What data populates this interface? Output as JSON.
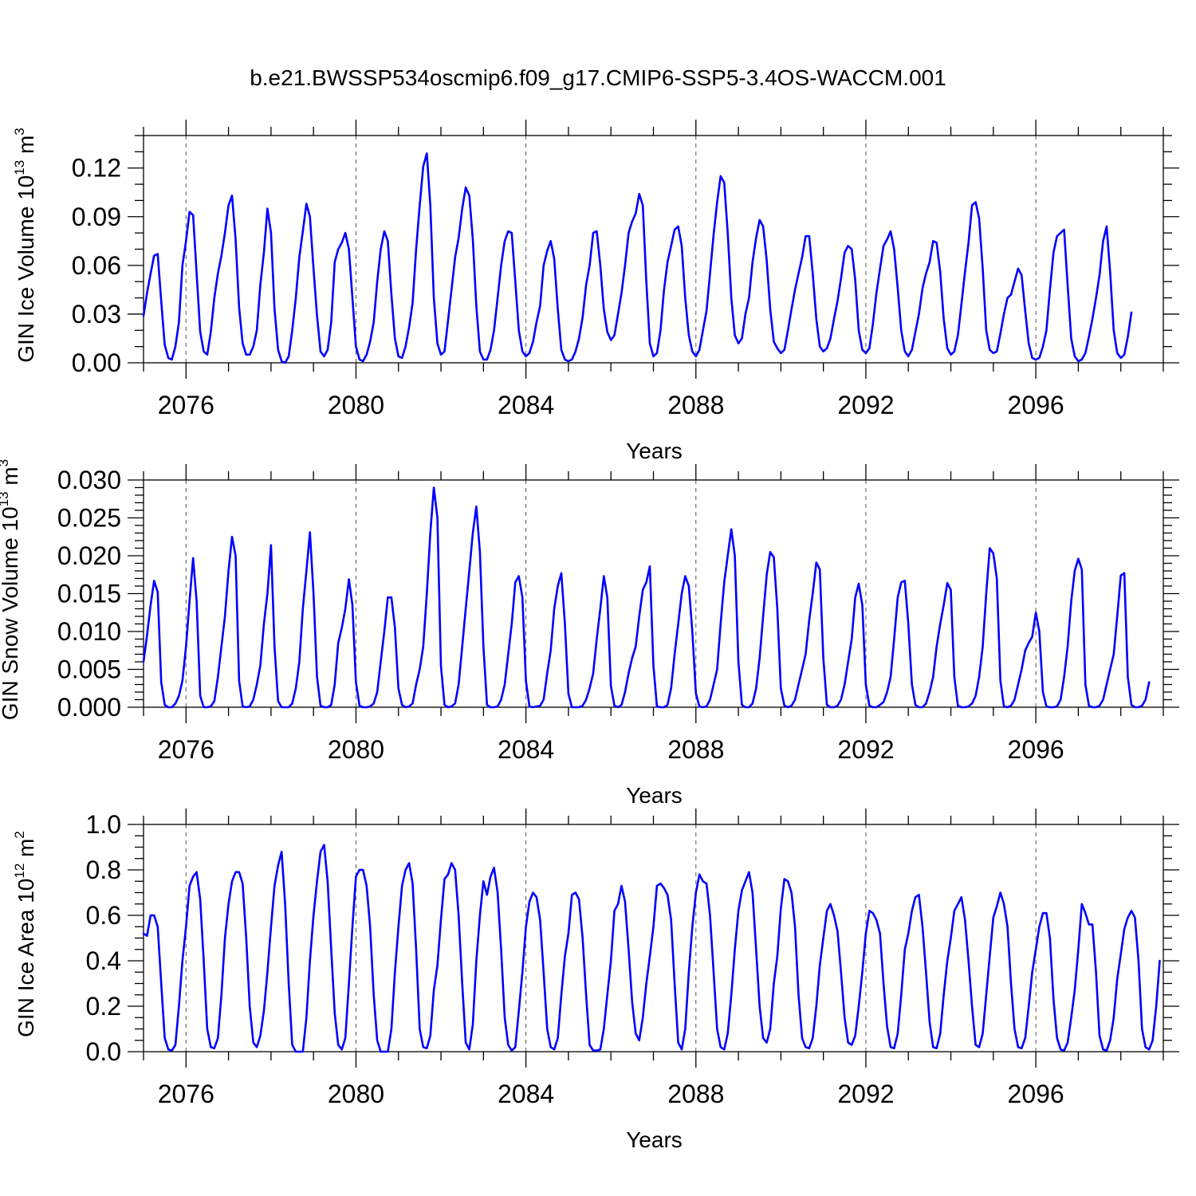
{
  "figure": {
    "title": "b.e21.BWSSP534oscmip6.f09_g17.CMIP6-SSP5-3.4OS-WACCM.001"
  },
  "chart_data": [
    {
      "type": "line",
      "ylabel": "GIN Ice Volume 10",
      "ylabel_exponent": "13",
      "ylabel_unit": " m",
      "ylabel_unit_exponent": "3",
      "xlabel": "Years",
      "xlim": [
        2075,
        2099
      ],
      "ylim": [
        0,
        0.14
      ],
      "yticks": [
        0,
        0.03,
        0.06,
        0.09,
        0.12
      ],
      "ytick_labels": [
        "0.00",
        "0.03",
        "0.06",
        "0.09",
        "0.12"
      ],
      "yminor_step": 0.01,
      "xticks": [
        2076,
        2080,
        2084,
        2088,
        2092,
        2096
      ],
      "xtick_labels": [
        "2076",
        "2080",
        "2084",
        "2088",
        "2092",
        "2096"
      ],
      "xminor_step": 1,
      "grid_x": [
        2076,
        2080,
        2084,
        2088,
        2092,
        2096
      ],
      "grid_style": "dashed vertical",
      "color": "#0000ff",
      "x_start": 2075.0,
      "x_step": 0.08333,
      "values": [
        0.029,
        0.043,
        0.055,
        0.066,
        0.067,
        0.038,
        0.011,
        0.003,
        0.002,
        0.01,
        0.025,
        0.06,
        0.075,
        0.093,
        0.091,
        0.055,
        0.019,
        0.007,
        0.005,
        0.019,
        0.04,
        0.055,
        0.066,
        0.08,
        0.097,
        0.103,
        0.076,
        0.034,
        0.012,
        0.005,
        0.005,
        0.01,
        0.02,
        0.048,
        0.068,
        0.095,
        0.08,
        0.033,
        0.008,
        0.001,
        0.0,
        0.004,
        0.02,
        0.04,
        0.065,
        0.081,
        0.098,
        0.09,
        0.058,
        0.029,
        0.007,
        0.004,
        0.008,
        0.025,
        0.062,
        0.07,
        0.074,
        0.08,
        0.07,
        0.04,
        0.01,
        0.002,
        0.001,
        0.005,
        0.013,
        0.025,
        0.05,
        0.07,
        0.081,
        0.075,
        0.042,
        0.015,
        0.004,
        0.003,
        0.01,
        0.022,
        0.037,
        0.07,
        0.097,
        0.121,
        0.129,
        0.097,
        0.04,
        0.012,
        0.005,
        0.007,
        0.026,
        0.045,
        0.065,
        0.077,
        0.095,
        0.108,
        0.103,
        0.076,
        0.035,
        0.007,
        0.002,
        0.002,
        0.008,
        0.02,
        0.04,
        0.06,
        0.075,
        0.081,
        0.08,
        0.05,
        0.02,
        0.007,
        0.004,
        0.006,
        0.013,
        0.025,
        0.035,
        0.06,
        0.069,
        0.075,
        0.064,
        0.033,
        0.008,
        0.002,
        0.001,
        0.002,
        0.007,
        0.015,
        0.028,
        0.048,
        0.06,
        0.08,
        0.081,
        0.06,
        0.033,
        0.019,
        0.014,
        0.017,
        0.03,
        0.043,
        0.06,
        0.08,
        0.087,
        0.092,
        0.104,
        0.097,
        0.05,
        0.012,
        0.004,
        0.006,
        0.02,
        0.045,
        0.062,
        0.072,
        0.082,
        0.084,
        0.072,
        0.04,
        0.017,
        0.007,
        0.004,
        0.008,
        0.02,
        0.032,
        0.055,
        0.079,
        0.099,
        0.115,
        0.111,
        0.08,
        0.04,
        0.017,
        0.012,
        0.015,
        0.03,
        0.04,
        0.062,
        0.077,
        0.088,
        0.084,
        0.063,
        0.033,
        0.013,
        0.009,
        0.006,
        0.008,
        0.02,
        0.033,
        0.045,
        0.055,
        0.065,
        0.078,
        0.078,
        0.055,
        0.027,
        0.01,
        0.007,
        0.009,
        0.015,
        0.027,
        0.038,
        0.052,
        0.068,
        0.072,
        0.07,
        0.051,
        0.02,
        0.008,
        0.006,
        0.009,
        0.024,
        0.043,
        0.058,
        0.072,
        0.076,
        0.081,
        0.07,
        0.046,
        0.02,
        0.007,
        0.004,
        0.008,
        0.019,
        0.03,
        0.046,
        0.055,
        0.062,
        0.075,
        0.074,
        0.056,
        0.027,
        0.009,
        0.005,
        0.007,
        0.017,
        0.036,
        0.056,
        0.074,
        0.097,
        0.099,
        0.089,
        0.058,
        0.02,
        0.008,
        0.006,
        0.007,
        0.018,
        0.03,
        0.04,
        0.042,
        0.05,
        0.058,
        0.054,
        0.032,
        0.012,
        0.003,
        0.002,
        0.003,
        0.01,
        0.02,
        0.045,
        0.068,
        0.078,
        0.08,
        0.082,
        0.048,
        0.015,
        0.004,
        0.001,
        0.002,
        0.006,
        0.016,
        0.027,
        0.04,
        0.054,
        0.075,
        0.084,
        0.056,
        0.02,
        0.006,
        0.003,
        0.005,
        0.016,
        0.031
      ]
    },
    {
      "type": "line",
      "ylabel": "GIN Snow Volume 10",
      "ylabel_exponent": "13",
      "ylabel_unit": " m",
      "ylabel_unit_exponent": "3",
      "xlabel": "Years",
      "xlim": [
        2075,
        2099
      ],
      "ylim": [
        0,
        0.03
      ],
      "yticks": [
        0,
        0.005,
        0.01,
        0.015,
        0.02,
        0.025,
        0.03
      ],
      "ytick_labels": [
        "0.000",
        "0.005",
        "0.010",
        "0.015",
        "0.020",
        "0.025",
        "0.030"
      ],
      "yminor_step": 0.001,
      "xticks": [
        2076,
        2080,
        2084,
        2088,
        2092,
        2096
      ],
      "xtick_labels": [
        "2076",
        "2080",
        "2084",
        "2088",
        "2092",
        "2096"
      ],
      "xminor_step": 1,
      "grid_x": [
        2076,
        2080,
        2084,
        2088,
        2092,
        2096
      ],
      "grid_style": "dashed vertical",
      "color": "#0000ff",
      "x_start": 2075.0,
      "x_step": 0.08333,
      "values": [
        0.006,
        0.0095,
        0.0135,
        0.0167,
        0.0152,
        0.0033,
        0.0003,
        0.0,
        0.0,
        0.0005,
        0.0015,
        0.0035,
        0.008,
        0.014,
        0.0197,
        0.014,
        0.0015,
        0.0,
        0.0,
        0.0001,
        0.0008,
        0.004,
        0.008,
        0.012,
        0.018,
        0.0225,
        0.02,
        0.0035,
        0.0001,
        0.0,
        0.0001,
        0.001,
        0.003,
        0.0055,
        0.011,
        0.015,
        0.0214,
        0.008,
        0.0008,
        0.0,
        0.0,
        0.0,
        0.0005,
        0.0025,
        0.006,
        0.013,
        0.018,
        0.0231,
        0.015,
        0.004,
        0.0002,
        0.0,
        0.0,
        0.0003,
        0.003,
        0.0085,
        0.0105,
        0.013,
        0.0169,
        0.0135,
        0.0033,
        0.0002,
        0.0,
        0.0,
        0.0001,
        0.0005,
        0.002,
        0.006,
        0.01,
        0.0145,
        0.0145,
        0.0105,
        0.0025,
        0.0003,
        0.0,
        0.0001,
        0.0005,
        0.003,
        0.005,
        0.008,
        0.015,
        0.023,
        0.029,
        0.025,
        0.0055,
        0.0003,
        0.0,
        0.0001,
        0.0005,
        0.003,
        0.008,
        0.013,
        0.018,
        0.023,
        0.0265,
        0.0205,
        0.008,
        0.0003,
        0.0,
        0.0,
        0.0001,
        0.001,
        0.003,
        0.007,
        0.011,
        0.0165,
        0.0173,
        0.0145,
        0.0035,
        0.0001,
        0.0,
        0.0001,
        0.0002,
        0.001,
        0.0045,
        0.0075,
        0.013,
        0.016,
        0.0177,
        0.011,
        0.0018,
        0.0,
        0.0,
        0.0,
        0.0002,
        0.001,
        0.0025,
        0.0045,
        0.009,
        0.013,
        0.0173,
        0.0145,
        0.0028,
        0.0002,
        0.0,
        0.0003,
        0.002,
        0.0045,
        0.0065,
        0.008,
        0.012,
        0.0155,
        0.0165,
        0.0186,
        0.0055,
        0.0001,
        0.0,
        0.0,
        0.0003,
        0.0025,
        0.007,
        0.011,
        0.015,
        0.0173,
        0.016,
        0.01,
        0.0018,
        0.0001,
        0.0,
        0.0001,
        0.001,
        0.003,
        0.005,
        0.011,
        0.0165,
        0.02,
        0.0235,
        0.02,
        0.006,
        0.0003,
        0.0,
        0.0,
        0.0005,
        0.0025,
        0.0065,
        0.012,
        0.0175,
        0.0205,
        0.0198,
        0.013,
        0.0025,
        0.0002,
        0.0,
        0.0002,
        0.001,
        0.003,
        0.005,
        0.007,
        0.0115,
        0.015,
        0.0191,
        0.0182,
        0.0065,
        0.0003,
        0.0,
        0.0,
        0.0002,
        0.001,
        0.003,
        0.006,
        0.009,
        0.0145,
        0.0163,
        0.0135,
        0.003,
        0.0002,
        0.0,
        0.0,
        0.0003,
        0.0007,
        0.002,
        0.004,
        0.009,
        0.0145,
        0.0165,
        0.0167,
        0.011,
        0.003,
        0.0003,
        0.0,
        0.0,
        0.0005,
        0.002,
        0.004,
        0.008,
        0.011,
        0.0135,
        0.0164,
        0.0155,
        0.004,
        0.0002,
        0.0,
        0.0,
        0.0001,
        0.0005,
        0.0015,
        0.004,
        0.008,
        0.015,
        0.021,
        0.0203,
        0.017,
        0.0035,
        0.0001,
        0.0,
        0.0002,
        0.001,
        0.003,
        0.005,
        0.0075,
        0.0085,
        0.0093,
        0.0125,
        0.01,
        0.002,
        0.0001,
        0.0,
        0.0,
        0.0001,
        0.001,
        0.004,
        0.008,
        0.014,
        0.018,
        0.0196,
        0.0182,
        0.003,
        0.0002,
        0.0,
        0.0,
        0.0002,
        0.001,
        0.003,
        0.005,
        0.007,
        0.012,
        0.0174,
        0.0177,
        0.004,
        0.0003,
        0.0,
        0.0,
        0.0002,
        0.001,
        0.0033
      ]
    },
    {
      "type": "line",
      "ylabel": "GIN Ice Area 10",
      "ylabel_exponent": "12",
      "ylabel_unit": " m",
      "ylabel_unit_exponent": "2",
      "xlabel": "Years",
      "xlim": [
        2075,
        2099
      ],
      "ylim": [
        0,
        1
      ],
      "yticks": [
        0,
        0.2,
        0.4,
        0.6,
        0.8,
        1.0
      ],
      "ytick_labels": [
        "0.0",
        "0.2",
        "0.4",
        "0.6",
        "0.8",
        "1.0"
      ],
      "yminor_step": 0.05,
      "xticks": [
        2076,
        2080,
        2084,
        2088,
        2092,
        2096
      ],
      "xtick_labels": [
        "2076",
        "2080",
        "2084",
        "2088",
        "2092",
        "2096"
      ],
      "xminor_step": 1,
      "grid_x": [
        2076,
        2080,
        2084,
        2088,
        2092,
        2096
      ],
      "grid_style": "dashed vertical",
      "color": "#0000ff",
      "x_start": 2075.0,
      "x_step": 0.08333,
      "values": [
        0.52,
        0.51,
        0.6,
        0.6,
        0.55,
        0.3,
        0.06,
        0.01,
        0.005,
        0.03,
        0.2,
        0.4,
        0.55,
        0.73,
        0.77,
        0.79,
        0.67,
        0.4,
        0.1,
        0.02,
        0.015,
        0.06,
        0.25,
        0.5,
        0.65,
        0.75,
        0.79,
        0.79,
        0.74,
        0.5,
        0.2,
        0.04,
        0.02,
        0.07,
        0.18,
        0.35,
        0.55,
        0.73,
        0.82,
        0.88,
        0.65,
        0.3,
        0.03,
        0.0,
        0.0,
        0.0,
        0.15,
        0.4,
        0.6,
        0.75,
        0.88,
        0.91,
        0.75,
        0.45,
        0.17,
        0.03,
        0.01,
        0.06,
        0.3,
        0.55,
        0.77,
        0.8,
        0.8,
        0.73,
        0.55,
        0.25,
        0.05,
        0.0,
        0.0,
        0.0,
        0.1,
        0.35,
        0.55,
        0.73,
        0.8,
        0.83,
        0.74,
        0.45,
        0.1,
        0.02,
        0.015,
        0.07,
        0.27,
        0.38,
        0.58,
        0.76,
        0.78,
        0.83,
        0.8,
        0.6,
        0.3,
        0.04,
        0.01,
        0.12,
        0.4,
        0.6,
        0.75,
        0.69,
        0.77,
        0.81,
        0.7,
        0.45,
        0.15,
        0.03,
        0.005,
        0.02,
        0.18,
        0.35,
        0.55,
        0.66,
        0.7,
        0.68,
        0.58,
        0.35,
        0.1,
        0.02,
        0.01,
        0.06,
        0.25,
        0.42,
        0.52,
        0.69,
        0.7,
        0.67,
        0.5,
        0.25,
        0.03,
        0.005,
        0.005,
        0.01,
        0.1,
        0.25,
        0.4,
        0.62,
        0.65,
        0.73,
        0.66,
        0.45,
        0.22,
        0.08,
        0.05,
        0.15,
        0.3,
        0.42,
        0.55,
        0.73,
        0.74,
        0.72,
        0.69,
        0.58,
        0.3,
        0.04,
        0.01,
        0.1,
        0.35,
        0.55,
        0.7,
        0.78,
        0.75,
        0.74,
        0.6,
        0.35,
        0.1,
        0.02,
        0.01,
        0.08,
        0.25,
        0.45,
        0.62,
        0.71,
        0.75,
        0.79,
        0.7,
        0.45,
        0.2,
        0.06,
        0.04,
        0.1,
        0.3,
        0.42,
        0.63,
        0.76,
        0.75,
        0.7,
        0.55,
        0.25,
        0.06,
        0.02,
        0.015,
        0.06,
        0.2,
        0.38,
        0.5,
        0.62,
        0.65,
        0.6,
        0.53,
        0.35,
        0.15,
        0.04,
        0.03,
        0.07,
        0.2,
        0.35,
        0.52,
        0.62,
        0.61,
        0.58,
        0.52,
        0.3,
        0.11,
        0.02,
        0.015,
        0.08,
        0.25,
        0.45,
        0.52,
        0.62,
        0.68,
        0.69,
        0.55,
        0.35,
        0.13,
        0.02,
        0.015,
        0.08,
        0.25,
        0.4,
        0.5,
        0.62,
        0.65,
        0.68,
        0.58,
        0.4,
        0.2,
        0.03,
        0.02,
        0.08,
        0.25,
        0.42,
        0.59,
        0.64,
        0.7,
        0.65,
        0.55,
        0.3,
        0.1,
        0.02,
        0.015,
        0.06,
        0.2,
        0.35,
        0.45,
        0.55,
        0.61,
        0.61,
        0.5,
        0.23,
        0.06,
        0.01,
        0.005,
        0.04,
        0.15,
        0.27,
        0.45,
        0.65,
        0.61,
        0.56,
        0.56,
        0.35,
        0.07,
        0.01,
        0.005,
        0.05,
        0.15,
        0.32,
        0.43,
        0.54,
        0.59,
        0.62,
        0.59,
        0.4,
        0.1,
        0.02,
        0.01,
        0.05,
        0.2,
        0.4
      ]
    }
  ]
}
